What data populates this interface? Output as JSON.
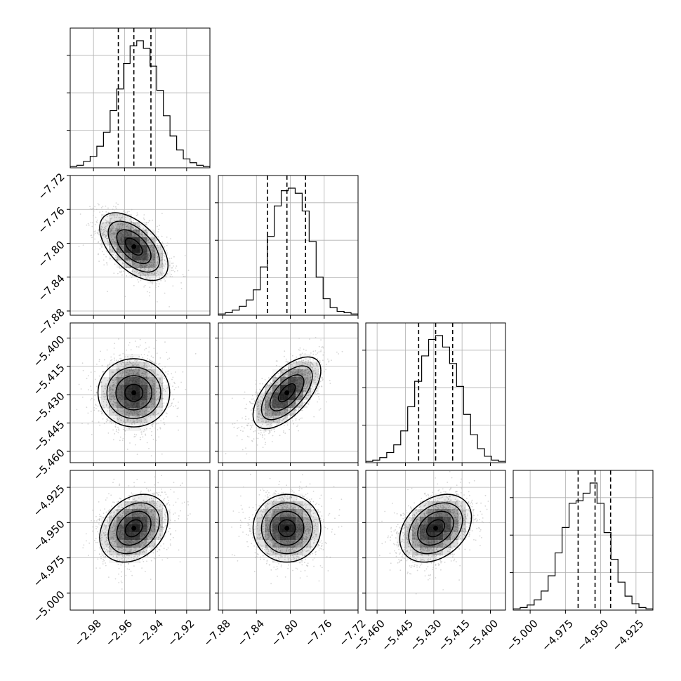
{
  "chart_data": {
    "type": "corner",
    "grid": true,
    "parameters": [
      {
        "xlim": [
          -2.995,
          -2.905
        ],
        "ticks": [
          -2.98,
          -2.96,
          -2.94,
          -2.92
        ],
        "tick_labels": [
          "−2.98",
          "−2.96",
          "−2.94",
          "−2.92"
        ],
        "mean": -2.954,
        "sd": 0.011,
        "quantiles": [
          -2.964,
          -2.954,
          -2.943
        ],
        "hist_counts": [
          1,
          2,
          5,
          9,
          17,
          28,
          45,
          62,
          82,
          96,
          100,
          94,
          80,
          61,
          41,
          25,
          14,
          7,
          4,
          2,
          1
        ]
      },
      {
        "xlim": [
          -7.885,
          -7.72
        ],
        "ticks": [
          -7.88,
          -7.84,
          -7.8,
          -7.76,
          -7.72
        ],
        "tick_labels": [
          "−7.88",
          "−7.84",
          "−7.80",
          "−7.76",
          "−7.72"
        ],
        "mean": -7.804,
        "sd": 0.02,
        "quantiles": [
          -7.827,
          -7.804,
          -7.782
        ],
        "hist_counts": [
          1,
          2,
          4,
          7,
          12,
          20,
          38,
          62,
          86,
          98,
          100,
          96,
          82,
          58,
          30,
          13,
          6,
          3,
          2,
          1
        ]
      },
      {
        "xlim": [
          -5.466,
          -5.392
        ],
        "ticks": [
          -5.46,
          -5.445,
          -5.43,
          -5.415,
          -5.4
        ],
        "tick_labels": [
          "−5.460",
          "−5.445",
          "−5.430",
          "−5.415",
          "−5.400"
        ],
        "mean": -5.429,
        "sd": 0.0095,
        "quantiles": [
          -5.438,
          -5.429,
          -5.42
        ],
        "hist_counts": [
          1,
          2,
          4,
          8,
          14,
          25,
          44,
          64,
          84,
          97,
          100,
          91,
          78,
          60,
          38,
          22,
          11,
          5,
          2,
          1
        ]
      },
      {
        "xlim": [
          -5.012,
          -4.913
        ],
        "ticks": [
          -5.0,
          -4.975,
          -4.95,
          -4.925
        ],
        "tick_labels": [
          "−5.000",
          "−4.975",
          "−4.950",
          "−4.925"
        ],
        "mean": -4.954,
        "sd": 0.012,
        "quantiles": [
          -4.966,
          -4.954,
          -4.943
        ],
        "hist_counts": [
          1,
          2,
          4,
          8,
          15,
          27,
          45,
          65,
          84,
          86,
          92,
          100,
          84,
          61,
          40,
          22,
          11,
          5,
          2,
          1
        ]
      }
    ],
    "correlations": [
      [
        1,
        -0.55,
        0.0,
        0.28
      ],
      [
        -0.55,
        1,
        0.62,
        0.0
      ],
      [
        0.0,
        0.62,
        1,
        0.32
      ],
      [
        0.28,
        0.0,
        0.32,
        1
      ]
    ],
    "scatter_samples_per_panel": 1700,
    "contour_sigma_levels": [
      0.5,
      1.0,
      1.5,
      2.0
    ],
    "colors": {
      "scatter": "#b4b4b4",
      "density": "#000000",
      "line": "#000000",
      "grid": "#b0b0b0"
    }
  }
}
